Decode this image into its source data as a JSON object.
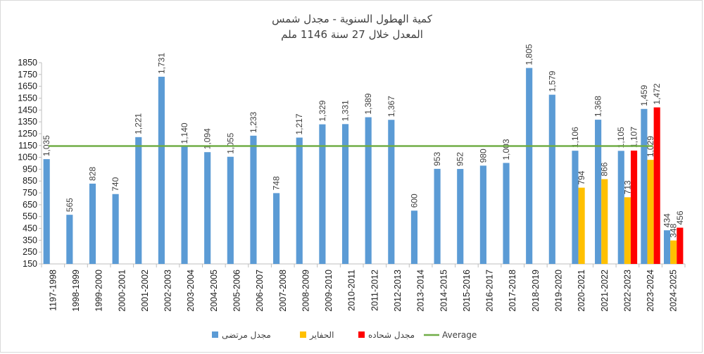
{
  "chart_data": {
    "type": "bar",
    "title_line1": "كمية الهطول السنوية - مجدل شمس",
    "title_line2": "المعدل خلال 27 سنة 1146 ملم",
    "categories": [
      "1197-1998",
      "1998-1999",
      "1999-2000",
      "2000-2001",
      "2001-2002",
      "2002-2003",
      "2003-2004",
      "2004-2005",
      "2005-2006",
      "2006-2007",
      "2007-2008",
      "2008-2009",
      "2009-2010",
      "2010-2011",
      "2011-2012",
      "2012-2013",
      "2013-2014",
      "2014-2015",
      "2015-2016",
      "2016-2017",
      "2017-2018",
      "2018-2019",
      "2019-2020",
      "2020-2021",
      "2021-2022",
      "2022-2023",
      "2023-2024",
      "2024-2025"
    ],
    "ylim": [
      150,
      1850
    ],
    "yticks": [
      150,
      250,
      350,
      450,
      550,
      650,
      750,
      850,
      950,
      1050,
      1150,
      1250,
      1350,
      1450,
      1550,
      1650,
      1750,
      1850
    ],
    "grid": false,
    "legend_position": "bottom",
    "series": [
      {
        "name": "مجدل مرتضى",
        "color": "#5b9bd5",
        "values": [
          1035,
          565,
          828,
          740,
          1221,
          1731,
          1140,
          1094,
          1055,
          1233,
          748,
          1217,
          1329,
          1331,
          1389,
          1367,
          600,
          953,
          952,
          980,
          1003,
          1805,
          1579,
          1106,
          1368,
          1105,
          1459,
          434
        ],
        "labels": [
          "1,035",
          "565",
          "828",
          "740",
          "1,221",
          "1,731",
          "1,140",
          "1,094",
          "1,055",
          "1,233",
          "748",
          "1,217",
          "1,329",
          "1,331",
          "1,389",
          "1,367",
          "600",
          "953",
          "952",
          "980",
          "1,003",
          "1,805",
          "1,579",
          "1,106",
          "1,368",
          "1,105",
          "1,459",
          "434"
        ]
      },
      {
        "name": "الحفاير",
        "color": "#ffc000",
        "values": [
          null,
          null,
          null,
          null,
          null,
          null,
          null,
          null,
          null,
          null,
          null,
          null,
          null,
          null,
          null,
          null,
          null,
          null,
          null,
          null,
          null,
          null,
          null,
          794,
          866,
          713,
          1029,
          348
        ],
        "labels": [
          "",
          "",
          "",
          "",
          "",
          "",
          "",
          "",
          "",
          "",
          "",
          "",
          "",
          "",
          "",
          "",
          "",
          "",
          "",
          "",
          "",
          "",
          "",
          "794",
          "866",
          "713",
          "1,029",
          "348"
        ]
      },
      {
        "name": "مجدل شحاده",
        "color": "#ff0000",
        "values": [
          null,
          null,
          null,
          null,
          null,
          null,
          null,
          null,
          null,
          null,
          null,
          null,
          null,
          null,
          null,
          null,
          null,
          null,
          null,
          null,
          null,
          null,
          null,
          null,
          null,
          1107,
          1472,
          456
        ],
        "labels": [
          "",
          "",
          "",
          "",
          "",
          "",
          "",
          "",
          "",
          "",
          "",
          "",
          "",
          "",
          "",
          "",
          "",
          "",
          "",
          "",
          "",
          "",
          "",
          "",
          "",
          "1,107",
          "1,472",
          "456"
        ]
      }
    ],
    "average": {
      "name": "Average",
      "value": 1146,
      "color": "#70ad47"
    }
  }
}
